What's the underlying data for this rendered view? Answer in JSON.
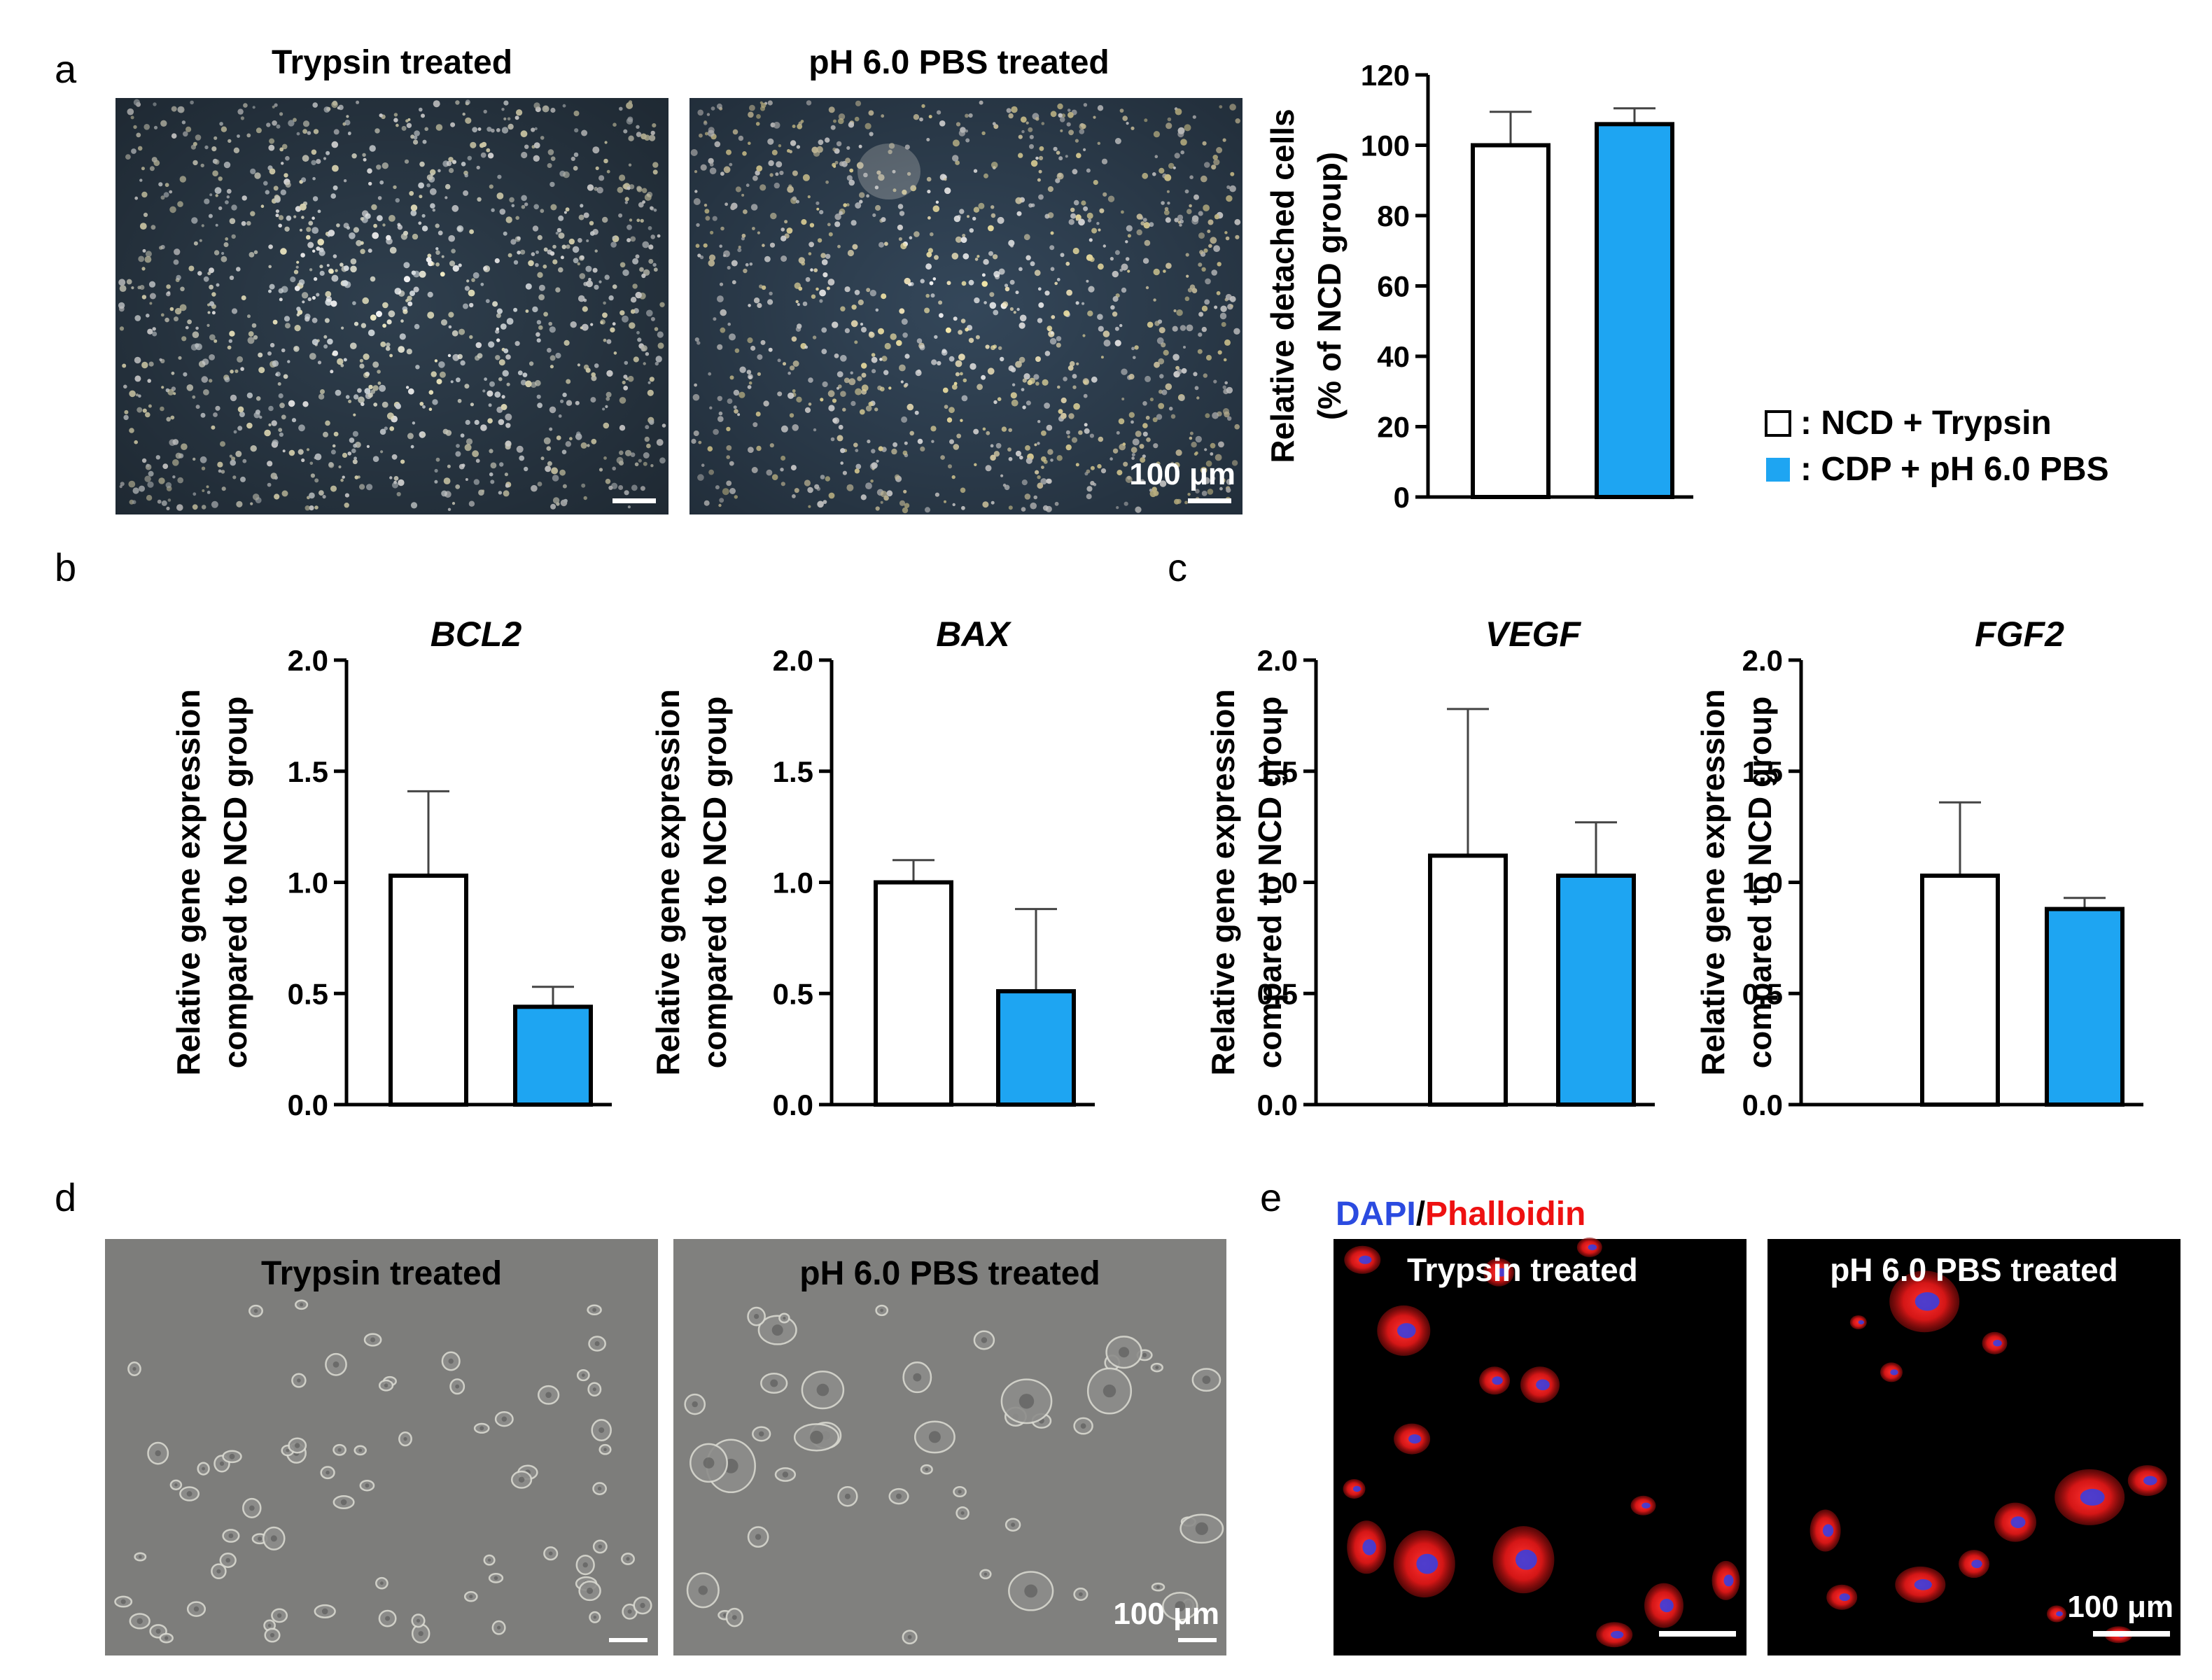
{
  "panel_letters": {
    "a": "a",
    "b": "b",
    "c": "c",
    "d": "d",
    "e": "e"
  },
  "panel_a": {
    "left_title": "Trypsin treated",
    "right_title": "pH 6.0 PBS treated",
    "scale_label": "100 μm"
  },
  "panel_d": {
    "left_title": "Trypsin treated",
    "right_title": "pH 6.0 PBS treated",
    "scale_label": "100 μm"
  },
  "panel_e": {
    "stain_dapi": "DAPI",
    "stain_sep": "/",
    "stain_phalloidin": "Phalloidin",
    "left_title": "Trypsin treated",
    "right_title": "pH 6.0 PBS treated",
    "scale_label": "100 μm"
  },
  "legend": {
    "items": [
      {
        "label": ": NCD + Trypsin",
        "color": "#ffffff"
      },
      {
        "label": ": CDP + pH 6.0 PBS",
        "color": "#1ea5f2"
      }
    ]
  },
  "colors": {
    "bar_ncd": "#ffffff",
    "bar_cdp": "#1ea5f2",
    "stain_dapi": "#2b4be0",
    "stain_phalloidin": "#ee1111"
  },
  "chart_data": [
    {
      "id": "detached",
      "type": "bar",
      "title": "",
      "ylabel_lines": [
        "Relative detached cells",
        "(% of NCD group)"
      ],
      "categories": [
        "NCD + Trypsin",
        "CDP + pH 6.0 PBS"
      ],
      "values": [
        100,
        106
      ],
      "errors": [
        9.5,
        4.5
      ],
      "ylim": [
        0,
        120
      ],
      "yticks": [
        0,
        20,
        40,
        60,
        80,
        100,
        120
      ],
      "tick_labels": [
        "0",
        "20",
        "40",
        "60",
        "80",
        "100",
        "120"
      ]
    },
    {
      "id": "bcl2",
      "type": "bar",
      "title": "BCL2",
      "ylabel_lines": [
        "Relative gene  expression",
        "compared to NCD group"
      ],
      "categories": [
        "NCD + Trypsin",
        "CDP + pH 6.0 PBS"
      ],
      "values": [
        1.03,
        0.44
      ],
      "errors": [
        0.38,
        0.09
      ],
      "ylim": [
        0,
        2.0
      ],
      "yticks": [
        0,
        0.5,
        1.0,
        1.5,
        2.0
      ],
      "tick_labels": [
        "0.0",
        "0.5",
        "1.0",
        "1.5",
        "2.0"
      ]
    },
    {
      "id": "bax",
      "type": "bar",
      "title": "BAX",
      "ylabel_lines": [
        "Relative gene  expression",
        "compared to NCD group"
      ],
      "categories": [
        "NCD + Trypsin",
        "CDP + pH 6.0 PBS"
      ],
      "values": [
        1.0,
        0.51
      ],
      "errors": [
        0.1,
        0.37
      ],
      "ylim": [
        0,
        2.0
      ],
      "yticks": [
        0,
        0.5,
        1.0,
        1.5,
        2.0
      ],
      "tick_labels": [
        "0.0",
        "0.5",
        "1.0",
        "1.5",
        "2.0"
      ]
    },
    {
      "id": "vegf",
      "type": "bar",
      "title": "VEGF",
      "ylabel_lines": [
        "Relative gene  expression",
        "compared to NCD group"
      ],
      "categories": [
        "NCD + Trypsin",
        "CDP + pH 6.0 PBS"
      ],
      "values": [
        1.12,
        1.03
      ],
      "errors": [
        0.66,
        0.24
      ],
      "ylim": [
        0,
        2.0
      ],
      "yticks": [
        0,
        0.5,
        1.0,
        1.5,
        2.0
      ],
      "tick_labels": [
        "0.0",
        "0.5",
        "1.0",
        "1.5",
        "2.0"
      ]
    },
    {
      "id": "fgf2",
      "type": "bar",
      "title": "FGF2",
      "ylabel_lines": [
        "Relative gene  expression",
        "compared to NCD group"
      ],
      "categories": [
        "NCD + Trypsin",
        "CDP + pH 6.0 PBS"
      ],
      "values": [
        1.03,
        0.88
      ],
      "errors": [
        0.33,
        0.05
      ],
      "ylim": [
        0,
        2.0
      ],
      "yticks": [
        0,
        0.5,
        1.0,
        1.5,
        2.0
      ],
      "tick_labels": [
        "0.0",
        "0.5",
        "1.0",
        "1.5",
        "2.0"
      ]
    }
  ]
}
